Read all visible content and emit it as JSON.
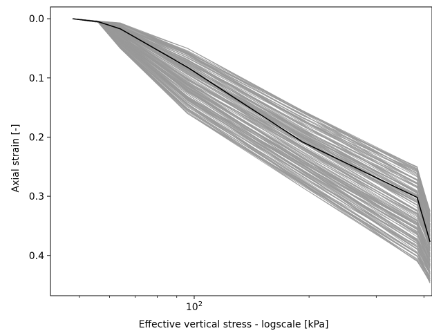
{
  "chart_data": {
    "type": "line",
    "title": "",
    "xlabel": "Effective vertical stress - logscale [kPa]",
    "ylabel": "Axial strain [-]",
    "xscale": "log",
    "xlim": [
      42,
      420
    ],
    "ylim": [
      -0.02,
      0.468
    ],
    "y_inverted": true,
    "grid": false,
    "x_ticks": [
      {
        "value": 100,
        "base": "10",
        "exponent": "2"
      }
    ],
    "y_ticks": [
      {
        "value": 0.0,
        "label": "0.0"
      },
      {
        "value": 0.1,
        "label": "0.1"
      },
      {
        "value": 0.2,
        "label": "0.2"
      },
      {
        "value": 0.3,
        "label": "0.3"
      },
      {
        "value": 0.4,
        "label": "0.4"
      }
    ],
    "x": [
      48,
      56,
      64,
      96,
      192,
      384,
      415
    ],
    "series_group": {
      "count": 150,
      "color": "#999999",
      "band_lower": [
        0.0,
        0.004,
        0.007,
        0.05,
        0.155,
        0.25,
        0.325
      ],
      "band_upper": [
        0.0,
        0.006,
        0.05,
        0.16,
        0.285,
        0.41,
        0.447
      ]
    },
    "series": [
      {
        "color": "#000000",
        "values": [
          0.0,
          0.005,
          0.017,
          0.082,
          0.208,
          0.302,
          0.377
        ]
      }
    ]
  }
}
